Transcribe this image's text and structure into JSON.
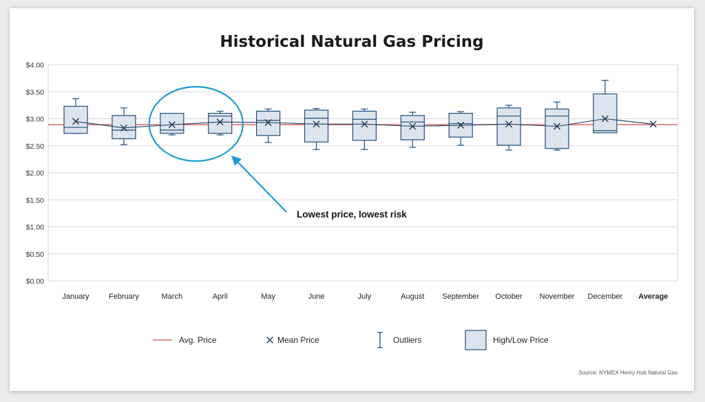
{
  "chart_data": {
    "type": "box",
    "title": "Historical Natural Gas Pricing",
    "y_ticks": [
      "$0.00",
      "$0.50",
      "$1.00",
      "$1.50",
      "$2.00",
      "$2.50",
      "$3.00",
      "$3.50",
      "$4.00"
    ],
    "ylim": [
      0,
      4
    ],
    "grid": true,
    "categories": [
      "January",
      "February",
      "March",
      "April",
      "May",
      "June",
      "July",
      "August",
      "September",
      "October",
      "November",
      "December",
      "Average"
    ],
    "boxes": [
      {
        "category": "January",
        "whisker_low": 2.73,
        "q1": 2.73,
        "median": 2.84,
        "q3": 3.23,
        "whisker_high": 3.37,
        "mean": 2.95
      },
      {
        "category": "February",
        "whisker_low": 2.52,
        "q1": 2.63,
        "median": 2.79,
        "q3": 3.06,
        "whisker_high": 3.2,
        "mean": 2.83
      },
      {
        "category": "March",
        "whisker_low": 2.7,
        "q1": 2.73,
        "median": 2.79,
        "q3": 3.1,
        "whisker_high": 3.1,
        "mean": 2.89
      },
      {
        "category": "April",
        "whisker_low": 2.7,
        "q1": 2.73,
        "median": 3.05,
        "q3": 3.1,
        "whisker_high": 3.14,
        "mean": 2.94
      },
      {
        "category": "May",
        "whisker_low": 2.56,
        "q1": 2.69,
        "median": 2.97,
        "q3": 3.14,
        "whisker_high": 3.18,
        "mean": 2.93
      },
      {
        "category": "June",
        "whisker_low": 2.43,
        "q1": 2.57,
        "median": 3.01,
        "q3": 3.16,
        "whisker_high": 3.19,
        "mean": 2.9
      },
      {
        "category": "July",
        "whisker_low": 2.43,
        "q1": 2.6,
        "median": 2.99,
        "q3": 3.14,
        "whisker_high": 3.18,
        "mean": 2.9
      },
      {
        "category": "August",
        "whisker_low": 2.47,
        "q1": 2.61,
        "median": 2.94,
        "q3": 3.06,
        "whisker_high": 3.12,
        "mean": 2.86
      },
      {
        "category": "September",
        "whisker_low": 2.51,
        "q1": 2.66,
        "median": 2.91,
        "q3": 3.1,
        "whisker_high": 3.13,
        "mean": 2.88
      },
      {
        "category": "October",
        "whisker_low": 2.42,
        "q1": 2.51,
        "median": 3.05,
        "q3": 3.2,
        "whisker_high": 3.25,
        "mean": 2.9
      },
      {
        "category": "November",
        "whisker_low": 2.42,
        "q1": 2.45,
        "median": 3.05,
        "q3": 3.18,
        "whisker_high": 3.31,
        "mean": 2.86
      },
      {
        "category": "December",
        "whisker_low": 2.74,
        "q1": 2.74,
        "median": 2.78,
        "q3": 3.46,
        "whisker_high": 3.71,
        "mean": 3.0
      }
    ],
    "average_mean": 2.9,
    "avg_price": 2.89,
    "legend": [
      {
        "key": "avg",
        "label": "Avg. Price"
      },
      {
        "key": "mean",
        "label": "Mean Price"
      },
      {
        "key": "outliers",
        "label": "Outliers"
      },
      {
        "key": "highlow",
        "label": "High/Low Price"
      }
    ],
    "annotation": {
      "text": "Lowest price, lowest risk",
      "highlight": [
        "March",
        "April"
      ]
    },
    "source": "Source: NYMEX Henry Hub Natural Gas",
    "colors": {
      "box_fill": "#dce4ee",
      "box_stroke": "#1f4e79",
      "avg_line": "#e06666",
      "mean_line": "#1f3a5a",
      "highlight": "#1a9bd7",
      "grid": "#d8d8d8"
    }
  }
}
